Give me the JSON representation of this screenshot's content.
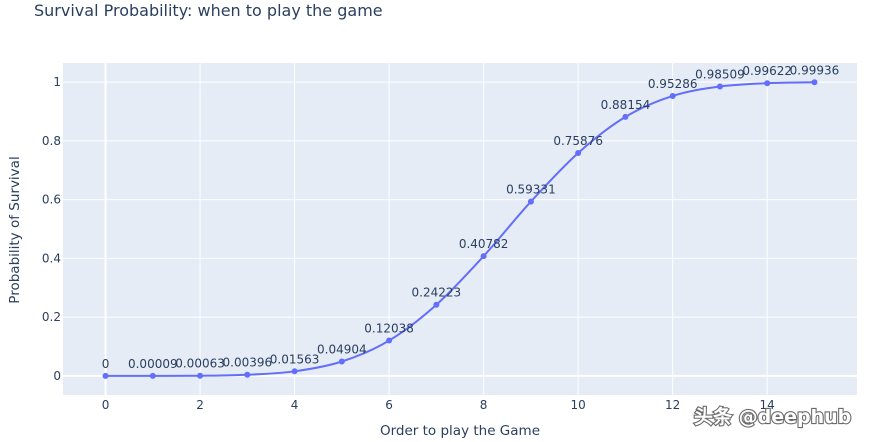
{
  "chart_data": {
    "type": "line",
    "title": "Survival Probability: when to play the game",
    "xlabel": "Order to play the Game",
    "ylabel": "Probability of Survival",
    "x": [
      0,
      1,
      2,
      3,
      4,
      5,
      6,
      7,
      8,
      9,
      10,
      11,
      12,
      13,
      14,
      15
    ],
    "y": [
      0,
      9e-05,
      0.00063,
      0.00396,
      0.01563,
      0.04904,
      0.12038,
      0.24223,
      0.40782,
      0.59331,
      0.75876,
      0.88154,
      0.95286,
      0.98509,
      0.99622,
      0.99936
    ],
    "labels": [
      "0",
      "0.00009",
      "0.00063",
      "0.00396",
      "0.01563",
      "0.04904",
      "0.12038",
      "0.24223",
      "0.40782",
      "0.59331",
      "0.75876",
      "0.88154",
      "0.95286",
      "0.98509",
      "0.99622",
      "0.99936"
    ],
    "xticks": [
      0,
      2,
      4,
      6,
      8,
      10,
      12,
      14
    ],
    "xtick_labels": [
      "0",
      "2",
      "4",
      "6",
      "8",
      "10",
      "12",
      "14"
    ],
    "yticks": [
      0,
      0.2,
      0.4,
      0.6,
      0.8,
      1
    ],
    "ytick_labels": [
      "0",
      "0.2",
      "0.4",
      "0.6",
      "0.8",
      "1"
    ],
    "xlim": [
      -0.9,
      15.9
    ],
    "ylim": [
      -0.065,
      1.065
    ],
    "grid": true,
    "colors": {
      "line": "#636efa",
      "plot_bg": "#e5ecf6",
      "grid": "#ffffff",
      "text": "#2a3f5f"
    }
  },
  "watermark": "头条 @deephub"
}
